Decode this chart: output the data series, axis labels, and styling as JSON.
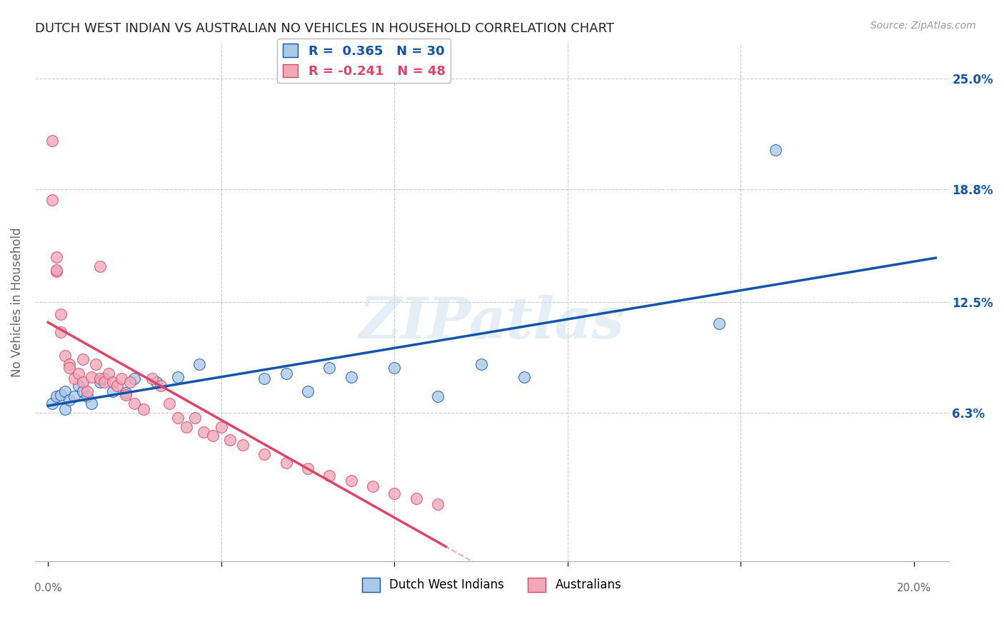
{
  "title": "DUTCH WEST INDIAN VS AUSTRALIAN NO VEHICLES IN HOUSEHOLD CORRELATION CHART",
  "source": "Source: ZipAtlas.com",
  "ylabel": "No Vehicles in Household",
  "ytick_vals": [
    0.0,
    0.063,
    0.125,
    0.188,
    0.25
  ],
  "ytick_labels": [
    "",
    "6.3%",
    "12.5%",
    "18.8%",
    "25.0%"
  ],
  "xtick_vals": [
    0.0,
    0.04,
    0.08,
    0.12,
    0.16,
    0.2
  ],
  "xlim": [
    -0.003,
    0.208
  ],
  "ylim": [
    -0.02,
    0.27
  ],
  "blue_R": "0.365",
  "blue_N": "30",
  "pink_R": "-0.241",
  "pink_N": "48",
  "blue_color": "#aac8e8",
  "pink_color": "#f0a8b8",
  "blue_line_color": "#1155aa",
  "pink_line_color": "#dd4466",
  "legend_label_blue": "Dutch West Indians",
  "legend_label_pink": "Australians",
  "watermark_text": "ZIPatlas",
  "background_color": "#ffffff",
  "grid_color": "#cccccc",
  "title_color": "#222222",
  "source_color": "#999999",
  "right_axis_color": "#1155aa",
  "marker_size": 130,
  "blue_x": [
    0.001,
    0.002,
    0.003,
    0.004,
    0.004,
    0.005,
    0.006,
    0.007,
    0.008,
    0.009,
    0.01,
    0.012,
    0.013,
    0.015,
    0.018,
    0.02,
    0.025,
    0.03,
    0.035,
    0.05,
    0.055,
    0.06,
    0.065,
    0.07,
    0.08,
    0.09,
    0.1,
    0.11,
    0.155,
    0.168
  ],
  "blue_y": [
    0.068,
    0.072,
    0.073,
    0.075,
    0.065,
    0.07,
    0.072,
    0.078,
    0.075,
    0.072,
    0.068,
    0.08,
    0.082,
    0.075,
    0.074,
    0.082,
    0.08,
    0.083,
    0.09,
    0.082,
    0.085,
    0.075,
    0.088,
    0.083,
    0.088,
    0.072,
    0.09,
    0.083,
    0.113,
    0.21
  ],
  "pink_x": [
    0.001,
    0.001,
    0.002,
    0.002,
    0.003,
    0.003,
    0.004,
    0.005,
    0.005,
    0.006,
    0.007,
    0.008,
    0.008,
    0.009,
    0.01,
    0.011,
    0.012,
    0.013,
    0.014,
    0.015,
    0.016,
    0.017,
    0.018,
    0.019,
    0.02,
    0.022,
    0.024,
    0.026,
    0.028,
    0.03,
    0.032,
    0.034,
    0.036,
    0.038,
    0.04,
    0.042,
    0.045,
    0.05,
    0.055,
    0.06,
    0.065,
    0.07,
    0.075,
    0.08,
    0.085,
    0.09,
    0.002,
    0.012
  ],
  "pink_y": [
    0.215,
    0.182,
    0.15,
    0.142,
    0.108,
    0.118,
    0.095,
    0.09,
    0.088,
    0.082,
    0.085,
    0.093,
    0.08,
    0.075,
    0.083,
    0.09,
    0.082,
    0.08,
    0.085,
    0.08,
    0.078,
    0.082,
    0.073,
    0.08,
    0.068,
    0.065,
    0.082,
    0.078,
    0.068,
    0.06,
    0.055,
    0.06,
    0.052,
    0.05,
    0.055,
    0.048,
    0.045,
    0.04,
    0.035,
    0.032,
    0.028,
    0.025,
    0.022,
    0.018,
    0.015,
    0.012,
    0.143,
    0.145
  ]
}
